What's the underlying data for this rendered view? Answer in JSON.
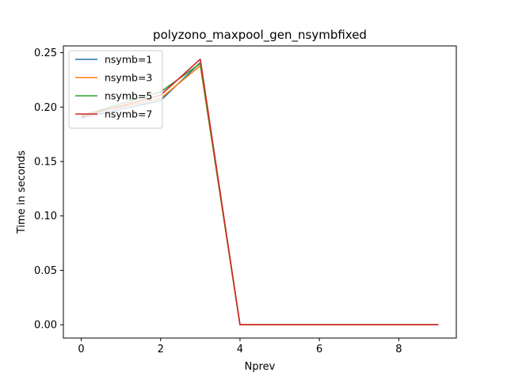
{
  "chart_data": {
    "type": "line",
    "title": "polyzono_maxpool_gen_nsymbfixed",
    "xlabel": "Nprev",
    "ylabel": "Time in seconds",
    "xlim": [
      -0.45,
      9.45
    ],
    "ylim": [
      -0.0122,
      0.2562
    ],
    "xticks": [
      0,
      2,
      4,
      6,
      8
    ],
    "xtick_labels": [
      "0",
      "2",
      "4",
      "6",
      "8"
    ],
    "yticks": [
      0.0,
      0.05,
      0.1,
      0.15,
      0.2,
      0.25
    ],
    "ytick_labels": [
      "0.00",
      "0.05",
      "0.10",
      "0.15",
      "0.20",
      "0.25"
    ],
    "grid": false,
    "legend_position": "top-left",
    "x": [
      0,
      1,
      2,
      3,
      4,
      5,
      6,
      7,
      8,
      9
    ],
    "series": [
      {
        "name": "nsymb=1",
        "color": "#1f77b4",
        "values": [
          0.19,
          0.198,
          0.206,
          0.241,
          0.0,
          0.0,
          0.0,
          0.0,
          0.0,
          0.0
        ]
      },
      {
        "name": "nsymb=3",
        "color": "#ff7f0e",
        "values": [
          0.193,
          0.2,
          0.208,
          0.238,
          0.0,
          0.0,
          0.0,
          0.0,
          0.0,
          0.0
        ]
      },
      {
        "name": "nsymb=5",
        "color": "#2ca02c",
        "values": [
          0.192,
          0.203,
          0.214,
          0.24,
          0.0,
          0.0,
          0.0,
          0.0,
          0.0,
          0.0
        ]
      },
      {
        "name": "nsymb=7",
        "color": "#d62728",
        "values": [
          0.191,
          0.201,
          0.211,
          0.244,
          0.0,
          0.0,
          0.0,
          0.0,
          0.0,
          0.0
        ]
      }
    ]
  }
}
